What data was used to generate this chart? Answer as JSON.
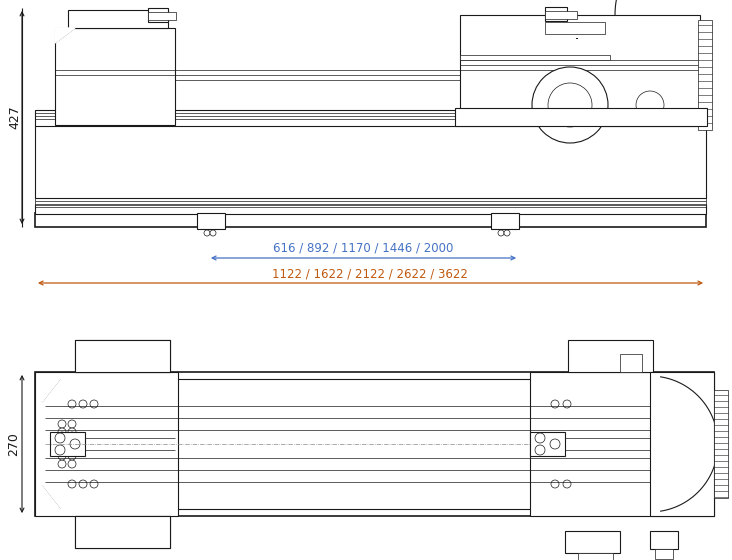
{
  "bg_color": "#ffffff",
  "line_color": "#1a1a1a",
  "dim_color_blue": "#4472c4",
  "dim_color_orange": "#c05a11",
  "figsize": [
    7.32,
    5.6
  ],
  "dpi": 100,
  "label_427": "427",
  "label_616": "616 / 892 / 1170 / 1446 / 2000",
  "label_1122": "1122 / 1622 / 2122 / 2622 / 3622",
  "label_270": "270"
}
